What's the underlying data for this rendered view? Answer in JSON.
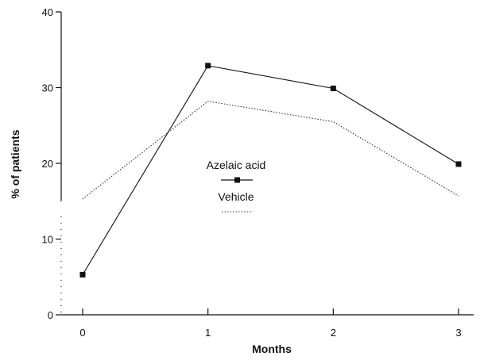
{
  "chart_data": {
    "type": "line",
    "title": "",
    "xlabel": "Months",
    "ylabel": "% of patients",
    "x": [
      0,
      1,
      2,
      3
    ],
    "x_tick_labels": [
      "0",
      "1",
      "2",
      "3"
    ],
    "ylim": [
      0,
      40
    ],
    "y_ticks": [
      0,
      10,
      20,
      30,
      40
    ],
    "y_tick_labels": [
      "0",
      "10",
      "20",
      "30",
      "40"
    ],
    "grid": false,
    "legend_position": "center",
    "series": [
      {
        "name": "Azelaic acid",
        "values": [
          5.3,
          32.9,
          29.9,
          19.9
        ],
        "style": "solid",
        "marker": "square",
        "color": "#111111"
      },
      {
        "name": "Vehicle",
        "values": [
          15.3,
          28.2,
          25.5,
          15.7
        ],
        "style": "dotted",
        "marker": "none",
        "color": "#333333"
      }
    ]
  }
}
